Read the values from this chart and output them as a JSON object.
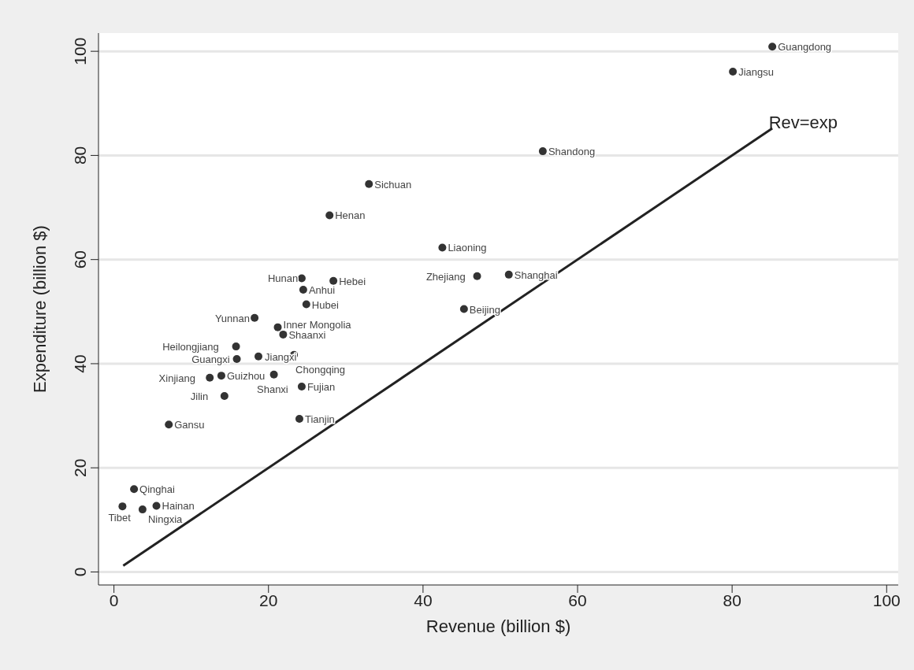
{
  "chart_data": {
    "type": "scatter",
    "xlabel": "Revenue (billion $)",
    "ylabel": "Expenditure (billion $)",
    "xlim": [
      -2,
      101.5
    ],
    "ylim": [
      -2.5,
      103.5
    ],
    "xticks": [
      0,
      20,
      40,
      60,
      80,
      100
    ],
    "yticks": [
      0,
      20,
      40,
      60,
      80,
      100
    ],
    "grid": "y",
    "legend": false,
    "series": [
      {
        "color": "#333333",
        "marker": "circle",
        "x": [
          85.2,
          80.1,
          55.5,
          33.0,
          27.9,
          42.5,
          47.0,
          51.1,
          45.3,
          24.3,
          28.4,
          24.5,
          24.9,
          18.2,
          21.2,
          21.9,
          15.8,
          15.9,
          18.7,
          23.3,
          13.9,
          12.4,
          20.7,
          24.3,
          14.3,
          24.0,
          7.1,
          2.6,
          1.1,
          5.5,
          3.7
        ],
        "values": [
          100.9,
          96.1,
          80.8,
          74.5,
          68.5,
          62.3,
          56.8,
          57.1,
          50.5,
          56.4,
          55.9,
          54.2,
          51.4,
          48.8,
          47.0,
          45.6,
          43.3,
          40.9,
          41.4,
          41.7,
          37.7,
          37.3,
          37.9,
          35.6,
          33.8,
          29.4,
          28.3,
          15.9,
          12.6,
          12.7,
          12.0
        ],
        "value_labels": [
          "Guangdong",
          "Jiangsu",
          "Shandong",
          "Sichuan",
          "Henan",
          "Liaoning",
          "Zhejiang",
          "Shanghai",
          "Beijing",
          "Hunan",
          "Hebei",
          "Anhui",
          "Hubei",
          "Yunnan",
          "Inner Mongolia",
          "Shaanxi",
          "Heilongjiang",
          "Guangxi",
          "Jiangxi",
          "Chongqing",
          "Guizhou",
          "Xinjiang",
          "Shanxi",
          "Fujian",
          "Jilin",
          "Tianjin",
          "Gansu",
          "Qinghai",
          "Tibet",
          "Hainan",
          "Ningxia"
        ]
      },
      {
        "type": "line",
        "name": "Rev=exp",
        "color": "#222222",
        "x": [
          1.2,
          85.2
        ],
        "values": [
          1.2,
          85.2
        ]
      }
    ]
  }
}
